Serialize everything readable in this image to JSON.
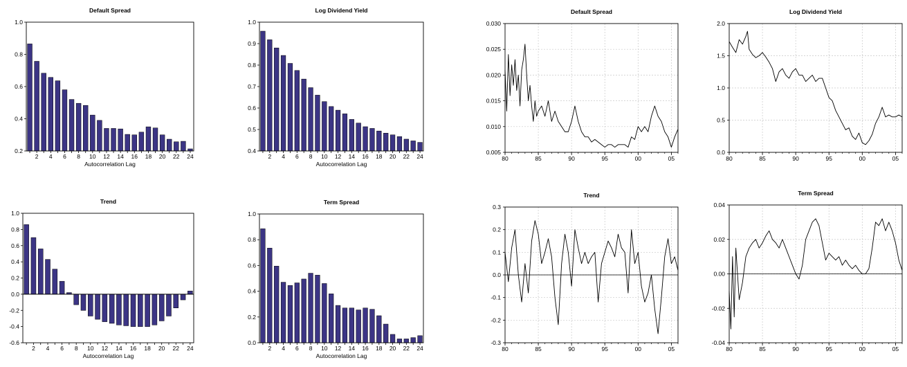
{
  "colors": {
    "bar_fill": "#3c3585",
    "bar_stroke": "#000000",
    "line": "#000000",
    "grid": "#c8c8c8"
  },
  "chart_data": [
    {
      "type": "bar",
      "title": "Default Spread",
      "xlabel": "Autocorrelation Lag",
      "ylabel": "",
      "ylim": [
        0.2,
        1.0
      ],
      "yticks": [
        0.2,
        0.4,
        0.6,
        0.8,
        1.0
      ],
      "ytick_labels": [
        "0.2",
        "0.4",
        "0.6",
        "0.8",
        "1.0"
      ],
      "x_tick_labels": [
        "2",
        "4",
        "6",
        "8",
        "10",
        "12",
        "14",
        "16",
        "18",
        "20",
        "22",
        "24"
      ],
      "grid": false,
      "categories": [
        1,
        2,
        3,
        4,
        5,
        6,
        7,
        8,
        9,
        10,
        11,
        12,
        13,
        14,
        15,
        16,
        17,
        18,
        19,
        20,
        21,
        22,
        23,
        24
      ],
      "values": [
        0.865,
        0.757,
        0.683,
        0.657,
        0.636,
        0.58,
        0.52,
        0.496,
        0.483,
        0.423,
        0.39,
        0.34,
        0.34,
        0.337,
        0.303,
        0.3,
        0.317,
        0.35,
        0.343,
        0.3,
        0.273,
        0.257,
        0.26,
        0.213
      ]
    },
    {
      "type": "bar",
      "title": "Log Dividend Yield",
      "xlabel": "Autocorrelation Lag",
      "ylabel": "",
      "ylim": [
        0.4,
        1.0
      ],
      "yticks": [
        0.4,
        0.5,
        0.6,
        0.7,
        0.8,
        0.9,
        1.0
      ],
      "ytick_labels": [
        "0.4",
        "0.5",
        "0.6",
        "0.7",
        "0.8",
        "0.9",
        "1.0"
      ],
      "x_tick_labels": [
        "2",
        "4",
        "6",
        "8",
        "10",
        "12",
        "14",
        "16",
        "18",
        "20",
        "22",
        "24"
      ],
      "grid": false,
      "categories": [
        1,
        2,
        3,
        4,
        5,
        6,
        7,
        8,
        9,
        10,
        11,
        12,
        13,
        14,
        15,
        16,
        17,
        18,
        19,
        20,
        21,
        22,
        23,
        24
      ],
      "values": [
        0.958,
        0.918,
        0.88,
        0.845,
        0.808,
        0.775,
        0.735,
        0.695,
        0.66,
        0.63,
        0.607,
        0.59,
        0.573,
        0.547,
        0.53,
        0.513,
        0.505,
        0.493,
        0.483,
        0.475,
        0.467,
        0.455,
        0.447,
        0.44
      ]
    },
    {
      "type": "bar",
      "title": "Trend",
      "xlabel": "Autocorrelation Lag",
      "ylabel": "",
      "ylim": [
        -0.6,
        1.0
      ],
      "yticks": [
        -0.6,
        -0.4,
        -0.2,
        0.0,
        0.2,
        0.4,
        0.6,
        0.8,
        1.0
      ],
      "ytick_labels": [
        "-0.6",
        "-0.4",
        "-0.2",
        "0.0",
        "0.2",
        "0.4",
        "0.6",
        "0.8",
        "1.0"
      ],
      "x_tick_labels": [
        "2",
        "4",
        "6",
        "8",
        "10",
        "12",
        "14",
        "16",
        "18",
        "20",
        "22",
        "24"
      ],
      "grid": false,
      "zero_line": true,
      "categories": [
        1,
        2,
        3,
        4,
        5,
        6,
        7,
        8,
        9,
        10,
        11,
        12,
        13,
        14,
        15,
        16,
        17,
        18,
        19,
        20,
        21,
        22,
        23,
        24
      ],
      "values": [
        0.86,
        0.7,
        0.56,
        0.43,
        0.31,
        0.16,
        0.02,
        -0.13,
        -0.2,
        -0.27,
        -0.31,
        -0.34,
        -0.36,
        -0.38,
        -0.39,
        -0.4,
        -0.4,
        -0.4,
        -0.38,
        -0.33,
        -0.27,
        -0.17,
        -0.07,
        0.04
      ]
    },
    {
      "type": "bar",
      "title": "Term Spread",
      "xlabel": "Autocorrelation Lag",
      "ylabel": "",
      "ylim": [
        0.0,
        1.0
      ],
      "yticks": [
        0.0,
        0.2,
        0.4,
        0.6,
        0.8,
        1.0
      ],
      "ytick_labels": [
        "0.0",
        "0.2",
        "0.4",
        "0.6",
        "0.8",
        "1.0"
      ],
      "x_tick_labels": [
        "2",
        "4",
        "6",
        "8",
        "10",
        "12",
        "14",
        "16",
        "18",
        "20",
        "22",
        "24"
      ],
      "grid": false,
      "categories": [
        1,
        2,
        3,
        4,
        5,
        6,
        7,
        8,
        9,
        10,
        11,
        12,
        13,
        14,
        15,
        16,
        17,
        18,
        19,
        20,
        21,
        22,
        23,
        24
      ],
      "values": [
        0.885,
        0.735,
        0.595,
        0.47,
        0.445,
        0.465,
        0.495,
        0.54,
        0.525,
        0.46,
        0.38,
        0.29,
        0.27,
        0.27,
        0.255,
        0.27,
        0.26,
        0.21,
        0.145,
        0.065,
        0.03,
        0.03,
        0.04,
        0.055
      ]
    },
    {
      "type": "line",
      "title": "Default Spread",
      "xlabel": "",
      "ylabel": "",
      "xlim": [
        1980,
        2006
      ],
      "ylim": [
        0.005,
        0.03
      ],
      "xticks": [
        1980,
        1985,
        1990,
        1995,
        2000,
        2005
      ],
      "xtick_labels": [
        "80",
        "85",
        "90",
        "95",
        "00",
        "05"
      ],
      "yticks": [
        0.005,
        0.01,
        0.015,
        0.02,
        0.025,
        0.03
      ],
      "ytick_labels": [
        "0.005",
        "0.010",
        "0.015",
        "0.020",
        "0.025",
        "0.030"
      ],
      "grid": true,
      "x": [
        1980.0,
        1980.25,
        1980.5,
        1980.75,
        1981.0,
        1981.25,
        1981.5,
        1981.75,
        1982.0,
        1982.25,
        1982.5,
        1982.75,
        1983.0,
        1983.25,
        1983.5,
        1983.75,
        1984.0,
        1984.25,
        1984.5,
        1984.75,
        1985.0,
        1985.5,
        1986.0,
        1986.5,
        1987.0,
        1987.5,
        1988.0,
        1988.5,
        1989.0,
        1989.5,
        1990.0,
        1990.5,
        1991.0,
        1991.5,
        1992.0,
        1992.5,
        1993.0,
        1993.5,
        1994.0,
        1994.5,
        1995.0,
        1995.5,
        1996.0,
        1996.5,
        1997.0,
        1997.5,
        1998.0,
        1998.5,
        1999.0,
        1999.5,
        2000.0,
        2000.5,
        2001.0,
        2001.5,
        2002.0,
        2002.5,
        2003.0,
        2003.5,
        2004.0,
        2004.5,
        2005.0,
        2005.5,
        2006.0
      ],
      "y": [
        0.021,
        0.013,
        0.024,
        0.016,
        0.022,
        0.018,
        0.023,
        0.017,
        0.02,
        0.014,
        0.021,
        0.023,
        0.026,
        0.02,
        0.015,
        0.018,
        0.014,
        0.011,
        0.015,
        0.012,
        0.013,
        0.014,
        0.012,
        0.015,
        0.011,
        0.013,
        0.011,
        0.01,
        0.009,
        0.009,
        0.011,
        0.014,
        0.011,
        0.009,
        0.008,
        0.008,
        0.007,
        0.0075,
        0.007,
        0.0065,
        0.006,
        0.0065,
        0.0065,
        0.006,
        0.0065,
        0.0065,
        0.0065,
        0.006,
        0.008,
        0.0075,
        0.01,
        0.009,
        0.01,
        0.009,
        0.012,
        0.014,
        0.012,
        0.011,
        0.009,
        0.008,
        0.006,
        0.008,
        0.0095
      ]
    },
    {
      "type": "line",
      "title": "Log Dividend Yield",
      "xlabel": "",
      "ylabel": "",
      "xlim": [
        1980,
        2006
      ],
      "ylim": [
        0.0,
        2.0
      ],
      "xticks": [
        1980,
        1985,
        1990,
        1995,
        2000,
        2005
      ],
      "xtick_labels": [
        "80",
        "85",
        "90",
        "95",
        "00",
        "05"
      ],
      "yticks": [
        0.0,
        0.5,
        1.0,
        1.5,
        2.0
      ],
      "ytick_labels": [
        "0.0",
        "0.5",
        "1.0",
        "1.5",
        "2.0"
      ],
      "grid": true,
      "x": [
        1980.0,
        1980.5,
        1981.0,
        1981.5,
        1982.0,
        1982.5,
        1982.75,
        1983.0,
        1983.5,
        1984.0,
        1984.5,
        1985.0,
        1985.5,
        1986.0,
        1986.5,
        1987.0,
        1987.5,
        1988.0,
        1988.5,
        1989.0,
        1989.5,
        1990.0,
        1990.5,
        1991.0,
        1991.5,
        1992.0,
        1992.5,
        1993.0,
        1993.5,
        1994.0,
        1994.5,
        1995.0,
        1995.5,
        1996.0,
        1996.5,
        1997.0,
        1997.5,
        1998.0,
        1998.5,
        1999.0,
        1999.5,
        2000.0,
        2000.5,
        2001.0,
        2001.5,
        2002.0,
        2002.5,
        2003.0,
        2003.5,
        2004.0,
        2004.5,
        2005.0,
        2005.5,
        2006.0
      ],
      "y": [
        1.72,
        1.63,
        1.55,
        1.75,
        1.68,
        1.8,
        1.88,
        1.6,
        1.52,
        1.47,
        1.5,
        1.55,
        1.48,
        1.4,
        1.3,
        1.1,
        1.25,
        1.3,
        1.2,
        1.15,
        1.25,
        1.3,
        1.2,
        1.2,
        1.1,
        1.15,
        1.2,
        1.1,
        1.15,
        1.15,
        1.0,
        0.85,
        0.8,
        0.65,
        0.55,
        0.45,
        0.35,
        0.38,
        0.25,
        0.2,
        0.3,
        0.15,
        0.12,
        0.18,
        0.28,
        0.45,
        0.55,
        0.7,
        0.55,
        0.58,
        0.55,
        0.55,
        0.58,
        0.55
      ]
    },
    {
      "type": "line",
      "title": "Trend",
      "xlabel": "",
      "ylabel": "",
      "xlim": [
        1980,
        2006
      ],
      "ylim": [
        -0.3,
        0.3
      ],
      "xticks": [
        1980,
        1985,
        1990,
        1995,
        2000,
        2005
      ],
      "xtick_labels": [
        "80",
        "85",
        "90",
        "95",
        "00",
        "05"
      ],
      "yticks": [
        -0.3,
        -0.2,
        -0.1,
        0.0,
        0.1,
        0.2,
        0.3
      ],
      "ytick_labels": [
        "-0.3",
        "-0.2",
        "-0.1",
        "0.0",
        "0.1",
        "0.2",
        "0.3"
      ],
      "grid": true,
      "zero_line": true,
      "x": [
        1980.0,
        1980.5,
        1981.0,
        1981.5,
        1982.0,
        1982.5,
        1983.0,
        1983.5,
        1984.0,
        1984.5,
        1985.0,
        1985.5,
        1986.0,
        1986.5,
        1987.0,
        1987.5,
        1988.0,
        1988.5,
        1989.0,
        1989.5,
        1990.0,
        1990.5,
        1991.0,
        1991.5,
        1992.0,
        1992.5,
        1993.0,
        1993.5,
        1994.0,
        1994.5,
        1995.0,
        1995.5,
        1996.0,
        1996.5,
        1997.0,
        1997.5,
        1998.0,
        1998.5,
        1999.0,
        1999.5,
        2000.0,
        2000.5,
        2001.0,
        2001.5,
        2002.0,
        2002.5,
        2003.0,
        2003.5,
        2004.0,
        2004.5,
        2005.0,
        2005.5,
        2006.0
      ],
      "y": [
        0.1,
        -0.03,
        0.12,
        0.2,
        0.0,
        -0.12,
        0.05,
        -0.08,
        0.15,
        0.24,
        0.18,
        0.05,
        0.1,
        0.16,
        0.08,
        -0.1,
        -0.22,
        0.05,
        0.18,
        0.1,
        -0.05,
        0.2,
        0.12,
        0.05,
        0.1,
        0.05,
        0.08,
        0.1,
        -0.12,
        0.05,
        0.1,
        0.15,
        0.12,
        0.08,
        0.18,
        0.12,
        0.1,
        -0.08,
        0.2,
        0.05,
        0.1,
        -0.05,
        -0.12,
        -0.08,
        0.0,
        -0.15,
        -0.26,
        -0.1,
        0.08,
        0.16,
        0.05,
        0.08,
        0.02
      ]
    },
    {
      "type": "line",
      "title": "Term Spread",
      "xlabel": "",
      "ylabel": "",
      "xlim": [
        1980,
        2006
      ],
      "ylim": [
        -0.04,
        0.04
      ],
      "xticks": [
        1980,
        1985,
        1990,
        1995,
        2000,
        2005
      ],
      "xtick_labels": [
        "80",
        "85",
        "90",
        "95",
        "00",
        "05"
      ],
      "yticks": [
        -0.04,
        -0.02,
        0.0,
        0.02,
        0.04
      ],
      "ytick_labels": [
        "-0.04",
        "-0.02",
        "0.00",
        "0.02",
        "0.04"
      ],
      "grid": true,
      "zero_line": true,
      "x": [
        1980.0,
        1980.25,
        1980.5,
        1980.75,
        1981.0,
        1981.5,
        1982.0,
        1982.5,
        1983.0,
        1983.5,
        1984.0,
        1984.5,
        1985.0,
        1985.5,
        1986.0,
        1986.5,
        1987.0,
        1987.5,
        1988.0,
        1988.5,
        1989.0,
        1989.5,
        1990.0,
        1990.5,
        1991.0,
        1991.5,
        1992.0,
        1992.5,
        1993.0,
        1993.5,
        1994.0,
        1994.5,
        1995.0,
        1995.5,
        1996.0,
        1996.5,
        1997.0,
        1997.5,
        1998.0,
        1998.5,
        1999.0,
        1999.5,
        2000.0,
        2000.5,
        2001.0,
        2001.5,
        2002.0,
        2002.5,
        2003.0,
        2003.5,
        2004.0,
        2004.5,
        2005.0,
        2005.5,
        2006.0
      ],
      "y": [
        -0.01,
        -0.032,
        0.01,
        -0.025,
        0.015,
        -0.015,
        -0.005,
        0.01,
        0.015,
        0.018,
        0.02,
        0.015,
        0.018,
        0.022,
        0.025,
        0.02,
        0.018,
        0.015,
        0.02,
        0.015,
        0.01,
        0.005,
        0.0,
        -0.003,
        0.005,
        0.02,
        0.025,
        0.03,
        0.032,
        0.028,
        0.018,
        0.008,
        0.012,
        0.01,
        0.008,
        0.01,
        0.005,
        0.008,
        0.005,
        0.003,
        0.005,
        0.002,
        0.0,
        0.0,
        0.003,
        0.015,
        0.03,
        0.028,
        0.032,
        0.025,
        0.03,
        0.025,
        0.018,
        0.008,
        0.002
      ]
    }
  ]
}
